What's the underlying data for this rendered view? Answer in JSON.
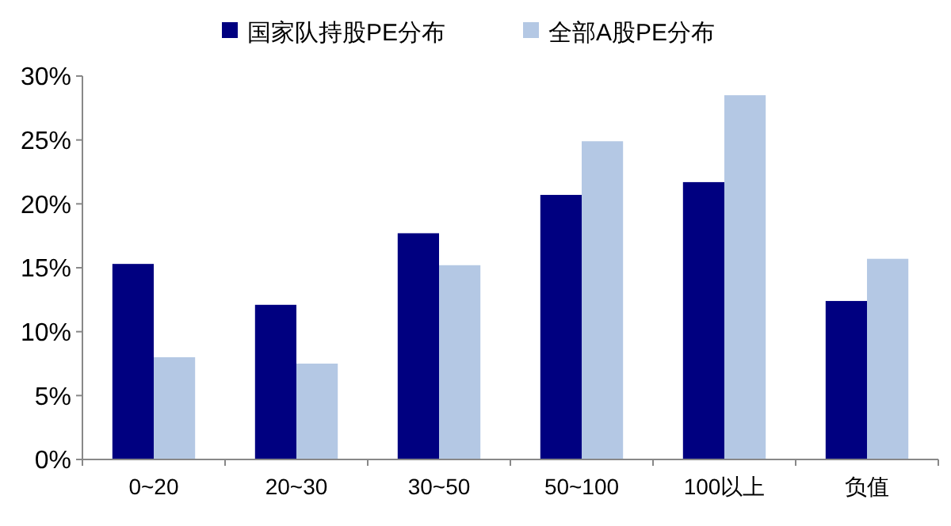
{
  "chart_data": {
    "type": "bar",
    "categories": [
      "0~20",
      "20~30",
      "30~50",
      "50~100",
      "100以上",
      "负值"
    ],
    "series": [
      {
        "name": "国家队持股PE分布",
        "color": "#000080",
        "values": [
          15.3,
          12.1,
          17.7,
          20.7,
          21.7,
          12.4
        ]
      },
      {
        "name": "全部A股PE分布",
        "color": "#b4c8e4",
        "values": [
          8.0,
          7.5,
          15.2,
          24.9,
          28.5,
          15.7
        ]
      }
    ],
    "ylim": [
      0,
      30
    ],
    "yticks": [
      {
        "value": 0,
        "label": "0%"
      },
      {
        "value": 5,
        "label": "5%"
      },
      {
        "value": 10,
        "label": "10%"
      },
      {
        "value": 15,
        "label": "15%"
      },
      {
        "value": 20,
        "label": "20%"
      },
      {
        "value": 25,
        "label": "25%"
      },
      {
        "value": 30,
        "label": "30%"
      }
    ],
    "grid": false,
    "legend": "top"
  }
}
